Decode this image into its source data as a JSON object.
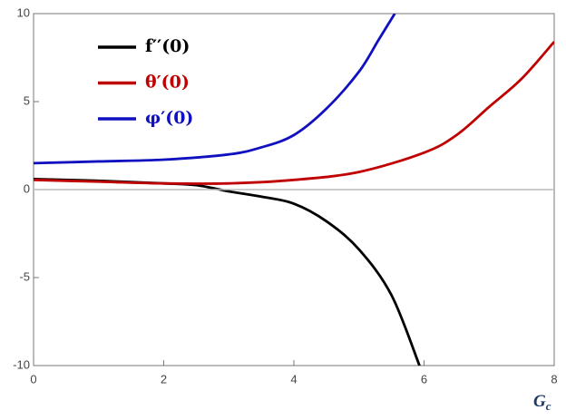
{
  "chart_data": {
    "type": "line",
    "xlabel": "G",
    "xlabel_subscript": "c",
    "xlim": [
      0,
      8
    ],
    "ylim": [
      -10,
      10
    ],
    "xticks": [
      0,
      2,
      4,
      6,
      8
    ],
    "yticks": [
      -10,
      -5,
      0,
      5,
      10
    ],
    "zero_line": true,
    "series": [
      {
        "name": "f′′(0)",
        "color": "#000000",
        "x": [
          0,
          1,
          2,
          2.5,
          3,
          3.5,
          4,
          4.5,
          5,
          5.5,
          5.93
        ],
        "values": [
          0.6,
          0.5,
          0.35,
          0.25,
          -0.1,
          -0.4,
          -0.8,
          -1.8,
          -3.4,
          -6,
          -10
        ]
      },
      {
        "name": "θ′(0)",
        "color": "#c00000",
        "x": [
          0,
          1,
          2,
          3,
          4,
          5,
          6,
          6.5,
          7,
          7.5,
          8
        ],
        "values": [
          0.55,
          0.45,
          0.35,
          0.35,
          0.55,
          1.0,
          2.1,
          3.1,
          4.7,
          6.3,
          8.4
        ]
      },
      {
        "name": "φ′(0)",
        "color": "#1010c0",
        "x": [
          0,
          1,
          2,
          3,
          3.5,
          4,
          4.5,
          5,
          5.3,
          5.55
        ],
        "values": [
          1.5,
          1.6,
          1.7,
          2.0,
          2.4,
          3.1,
          4.6,
          6.7,
          8.5,
          10
        ]
      }
    ]
  }
}
